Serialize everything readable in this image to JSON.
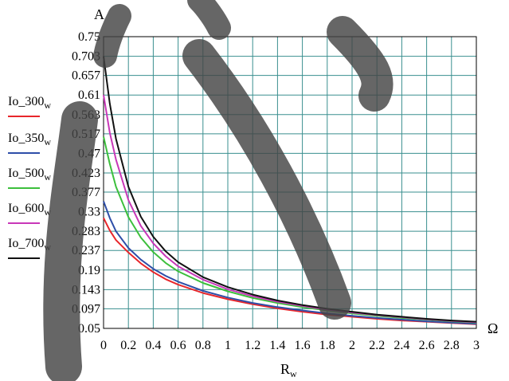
{
  "chart_data": {
    "type": "line",
    "title": "",
    "ylabel": "A",
    "xunit": "Ω",
    "xlabel": "R",
    "xlabel_sub": "w",
    "xlim": [
      0,
      3
    ],
    "ylim": [
      0.05,
      0.75
    ],
    "grid": true,
    "legend_position": "left",
    "x_ticks": [
      "0",
      "0.2",
      "0.4",
      "0.6",
      "0.8",
      "1",
      "1.2",
      "1.4",
      "1.6",
      "1.8",
      "2",
      "2.2",
      "2.4",
      "2.6",
      "2.8",
      "3"
    ],
    "y_ticks": [
      "0.05",
      "0.097",
      "0.143",
      "0.19",
      "0.237",
      "0.283",
      "0.33",
      "0.377",
      "0.423",
      "0.47",
      "0.517",
      "0.563",
      "0.61",
      "0.657",
      "0.703",
      "0.75"
    ],
    "x": [
      0,
      0.05,
      0.1,
      0.2,
      0.3,
      0.4,
      0.5,
      0.6,
      0.8,
      1.0,
      1.2,
      1.4,
      1.6,
      1.8,
      2.0,
      2.2,
      2.4,
      2.6,
      2.8,
      3.0
    ],
    "series": [
      {
        "name": "Io_300",
        "sub": "w",
        "color": "#e8262b",
        "values": [
          0.315,
          0.285,
          0.262,
          0.232,
          0.206,
          0.185,
          0.168,
          0.155,
          0.135,
          0.12,
          0.108,
          0.098,
          0.09,
          0.083,
          0.078,
          0.073,
          0.069,
          0.066,
          0.063,
          0.06
        ]
      },
      {
        "name": "Io_350",
        "sub": "w",
        "color": "#2e4ea8",
        "values": [
          0.355,
          0.315,
          0.283,
          0.243,
          0.215,
          0.193,
          0.176,
          0.162,
          0.14,
          0.124,
          0.111,
          0.101,
          0.093,
          0.086,
          0.08,
          0.075,
          0.071,
          0.067,
          0.064,
          0.061
        ]
      },
      {
        "name": "Io_500",
        "sub": "w",
        "color": "#3cbf3c",
        "values": [
          0.51,
          0.445,
          0.39,
          0.317,
          0.268,
          0.233,
          0.207,
          0.187,
          0.159,
          0.139,
          0.123,
          0.111,
          0.101,
          0.093,
          0.086,
          0.08,
          0.075,
          0.071,
          0.067,
          0.064
        ]
      },
      {
        "name": "Io_600",
        "sub": "w",
        "color": "#c837b8",
        "values": [
          0.61,
          0.52,
          0.455,
          0.358,
          0.296,
          0.254,
          0.223,
          0.199,
          0.167,
          0.144,
          0.127,
          0.114,
          0.104,
          0.095,
          0.088,
          0.082,
          0.077,
          0.072,
          0.068,
          0.065
        ]
      },
      {
        "name": "Io_700",
        "sub": "w",
        "color": "#111111",
        "values": [
          0.703,
          0.59,
          0.505,
          0.39,
          0.318,
          0.27,
          0.235,
          0.209,
          0.173,
          0.149,
          0.131,
          0.117,
          0.106,
          0.097,
          0.09,
          0.083,
          0.078,
          0.073,
          0.069,
          0.066
        ]
      }
    ]
  }
}
